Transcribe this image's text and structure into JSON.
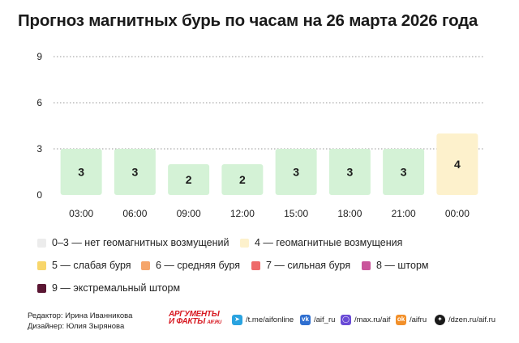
{
  "title": "Прогноз магнитных бурь по часам на 26 марта 2026 года",
  "chart_data": {
    "type": "bar",
    "categories": [
      "03:00",
      "06:00",
      "09:00",
      "12:00",
      "15:00",
      "18:00",
      "21:00",
      "00:00"
    ],
    "values": [
      3,
      3,
      2,
      2,
      3,
      3,
      3,
      4
    ],
    "yticks": [
      0,
      3,
      6,
      9
    ],
    "ylim": [
      0,
      9
    ],
    "grid": true,
    "xlabel": "",
    "ylabel": "",
    "colors": {
      "0-3": "#d4f2d6",
      "4": "#fdf1cc",
      "5": "#f8d66b",
      "6": "#f5a56a",
      "7": "#ee6a6a",
      "8": "#c9559b",
      "9": "#5a1633"
    }
  },
  "legend": [
    {
      "label": "0–3 — нет геомагнитных возмущений",
      "color": "#ececec"
    },
    {
      "label": "4 — геомагнитные возмущения",
      "color": "#fdf1cc"
    },
    {
      "label": "5 — слабая буря",
      "color": "#f8d66b"
    },
    {
      "label": "6 — средняя буря",
      "color": "#f5a56a"
    },
    {
      "label": "7 — сильная буря",
      "color": "#ee6a6a"
    },
    {
      "label": "8 — шторм",
      "color": "#c9559b"
    },
    {
      "label": "9 — экстремальный шторм",
      "color": "#5a1633"
    }
  ],
  "footer": {
    "editor": "Редактор: Ирина Иванникова",
    "designer": "Дизайнер: Юлия Зырянова",
    "logo_line1": "АРГУМЕНТЫ",
    "logo_line2": "И ФАКТЫ",
    "logo_suffix": "AIF.RU"
  },
  "social": [
    {
      "icon": "telegram-icon",
      "label": "/t.me/aifonline",
      "color": "#2aa3e0",
      "glyph": "➤"
    },
    {
      "icon": "vk-icon",
      "label": "/aif_ru",
      "color": "#2f6fd0",
      "glyph": "vk"
    },
    {
      "icon": "max-icon",
      "label": "/max.ru/aif",
      "color": "#6a4bd6",
      "glyph": "◯"
    },
    {
      "icon": "ok-icon",
      "label": "/aifru",
      "color": "#f2902a",
      "glyph": "ok"
    },
    {
      "icon": "dzen-icon",
      "label": "/dzen.ru/aif.ru",
      "color": "#1a1a1a",
      "glyph": "✦"
    }
  ]
}
